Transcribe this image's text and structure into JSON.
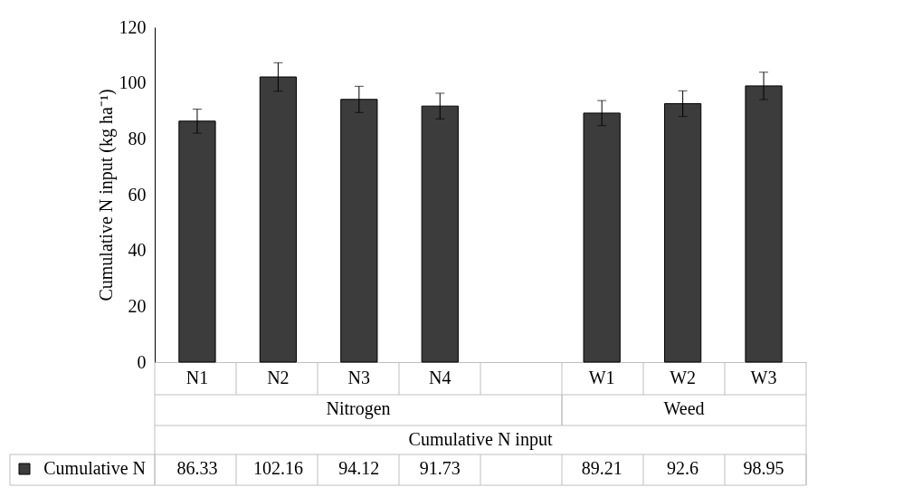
{
  "chart_data": {
    "type": "bar",
    "categories": [
      "N1",
      "N2",
      "N3",
      "N4",
      null,
      "W1",
      "W2",
      "W3"
    ],
    "ylabel": "Cumulative N input (kg ha⁻¹)",
    "series": [
      {
        "name": "Cumulative N",
        "color": "#3c3c3c",
        "values": [
          86.33,
          102.16,
          94.12,
          91.73,
          null,
          89.21,
          92.6,
          98.95
        ],
        "errors": [
          4.3,
          5.1,
          4.7,
          4.6,
          null,
          4.5,
          4.6,
          4.9
        ]
      }
    ],
    "annotations": [
      "Nitrogen",
      "Weed",
      "Cumulative N input"
    ],
    "ylim": [
      0,
      120
    ],
    "yticks": [
      0,
      20,
      40,
      60,
      80,
      100,
      120
    ],
    "grid": false,
    "legend": "bottom left",
    "data_labels": true
  }
}
